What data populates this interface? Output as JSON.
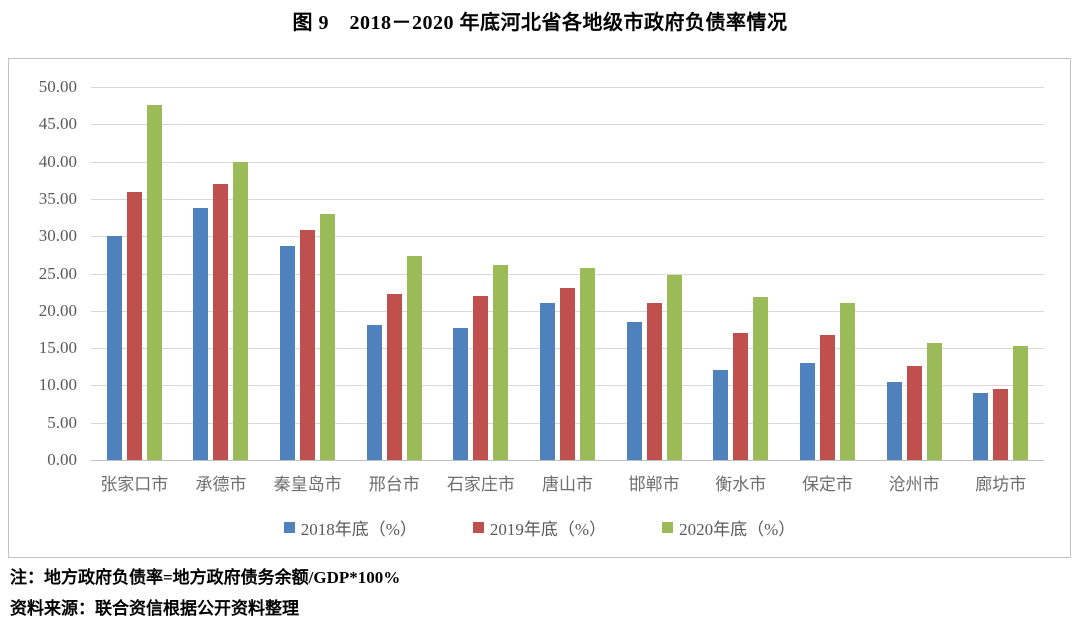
{
  "title": "图 9　2018－2020 年底河北省各地级市政府负债率情况",
  "chart_data": {
    "type": "bar",
    "title": "图 9　2018－2020 年底河北省各地级市政府负债率情况",
    "categories": [
      "张家口市",
      "承德市",
      "秦皇岛市",
      "邢台市",
      "石家庄市",
      "唐山市",
      "邯郸市",
      "衡水市",
      "保定市",
      "沧州市",
      "廊坊市"
    ],
    "series": [
      {
        "name": "2018年底（%）",
        "color": "#4F81BD",
        "values": [
          30.0,
          33.8,
          28.7,
          18.1,
          17.7,
          21.0,
          18.5,
          12.0,
          13.0,
          10.4,
          9.0
        ]
      },
      {
        "name": "2019年底（%）",
        "color": "#C0504D",
        "values": [
          35.9,
          37.0,
          30.8,
          22.2,
          22.0,
          23.1,
          21.1,
          17.0,
          16.8,
          12.6,
          9.5
        ]
      },
      {
        "name": "2020年底（%）",
        "color": "#9BBB59",
        "values": [
          47.6,
          40.0,
          33.0,
          27.4,
          26.1,
          25.7,
          24.8,
          21.9,
          21.1,
          15.7,
          15.3
        ]
      }
    ],
    "xlabel": "",
    "ylabel": "",
    "ylim": [
      0,
      50
    ],
    "ytick_step": 5,
    "yticks": [
      "0.00",
      "5.00",
      "10.00",
      "15.00",
      "20.00",
      "25.00",
      "30.00",
      "35.00",
      "40.00",
      "45.00",
      "50.00"
    ],
    "grid": true,
    "legend_position": "bottom"
  },
  "notes": {
    "formula": "注：地方政府负债率=地方政府债务余额/GDP*100%",
    "source": "资料来源：联合资信根据公开资料整理"
  }
}
